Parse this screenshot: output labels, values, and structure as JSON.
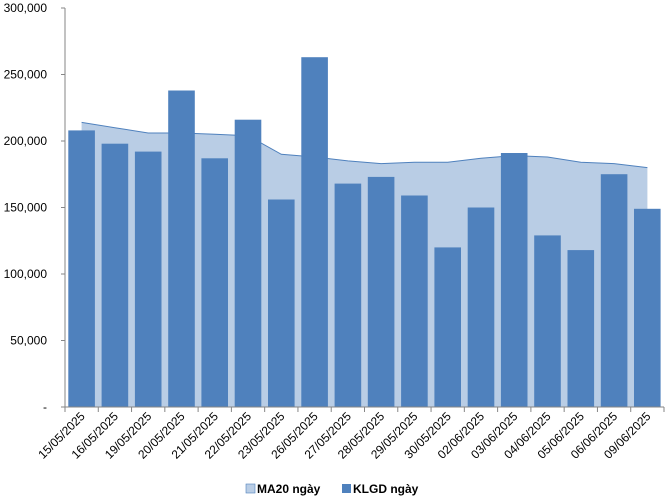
{
  "chart_data": {
    "type": "bar",
    "categories": [
      "15/05/2025",
      "16/05/2025",
      "19/05/2025",
      "20/05/2025",
      "21/05/2025",
      "22/05/2025",
      "23/05/2025",
      "26/05/2025",
      "27/05/2025",
      "28/05/2025",
      "29/05/2025",
      "30/05/2025",
      "02/06/2025",
      "03/06/2025",
      "04/06/2025",
      "05/06/2025",
      "06/06/2025",
      "09/06/2025"
    ],
    "series": [
      {
        "name": "MA20 ngày",
        "type": "area",
        "color": "#b9cde5",
        "values": [
          214000,
          210000,
          206000,
          206000,
          205000,
          204000,
          190000,
          188000,
          185000,
          183000,
          184000,
          184000,
          187000,
          189000,
          188000,
          184000,
          183000,
          180000
        ]
      },
      {
        "name": "KLGD ngày",
        "type": "bar",
        "color": "#4f81bd",
        "values": [
          208000,
          198000,
          192000,
          238000,
          187000,
          216000,
          156000,
          263000,
          168000,
          173000,
          159000,
          120000,
          150000,
          191000,
          129000,
          118000,
          175000,
          149000
        ]
      }
    ],
    "yticks": [
      "-",
      "50,000",
      "100,000",
      "150,000",
      "200,000",
      "250,000",
      "300,000"
    ],
    "ylim": [
      0,
      300000
    ],
    "title": "",
    "xlabel": "",
    "ylabel": "",
    "grid": false,
    "legend_position": "bottom"
  }
}
